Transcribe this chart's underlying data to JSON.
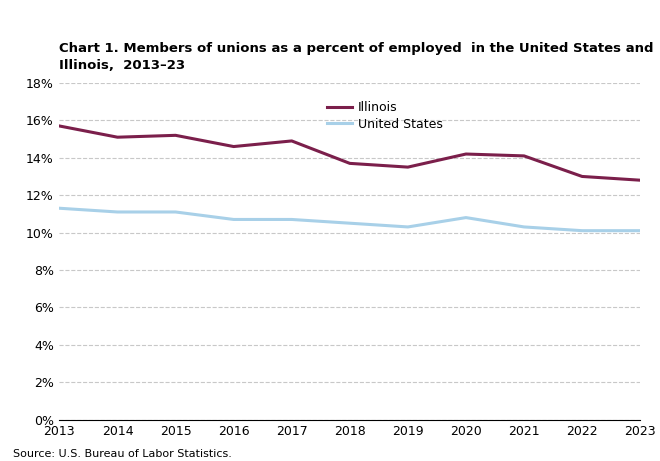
{
  "years": [
    2013,
    2014,
    2015,
    2016,
    2017,
    2018,
    2019,
    2020,
    2021,
    2022,
    2023
  ],
  "illinois": [
    15.7,
    15.1,
    15.2,
    14.6,
    14.9,
    13.7,
    13.5,
    14.2,
    14.1,
    13.0,
    12.8
  ],
  "us": [
    11.3,
    11.1,
    11.1,
    10.7,
    10.7,
    10.5,
    10.3,
    10.8,
    10.3,
    10.1,
    10.1
  ],
  "illinois_color": "#7b1f4b",
  "us_color": "#a8d0e8",
  "title": "Chart 1. Members of unions as a percent of employed  in the United States and\nIllinois,  2013–23",
  "legend_illinois": "Illinois",
  "legend_us": "United States",
  "source_text": "Source: U.S. Bureau of Labor Statistics.",
  "ylim": [
    0,
    18
  ],
  "yticks": [
    0,
    2,
    4,
    6,
    8,
    10,
    12,
    14,
    16,
    18
  ],
  "line_width": 2.2,
  "background_color": "#ffffff",
  "grid_color": "#c8c8c8"
}
